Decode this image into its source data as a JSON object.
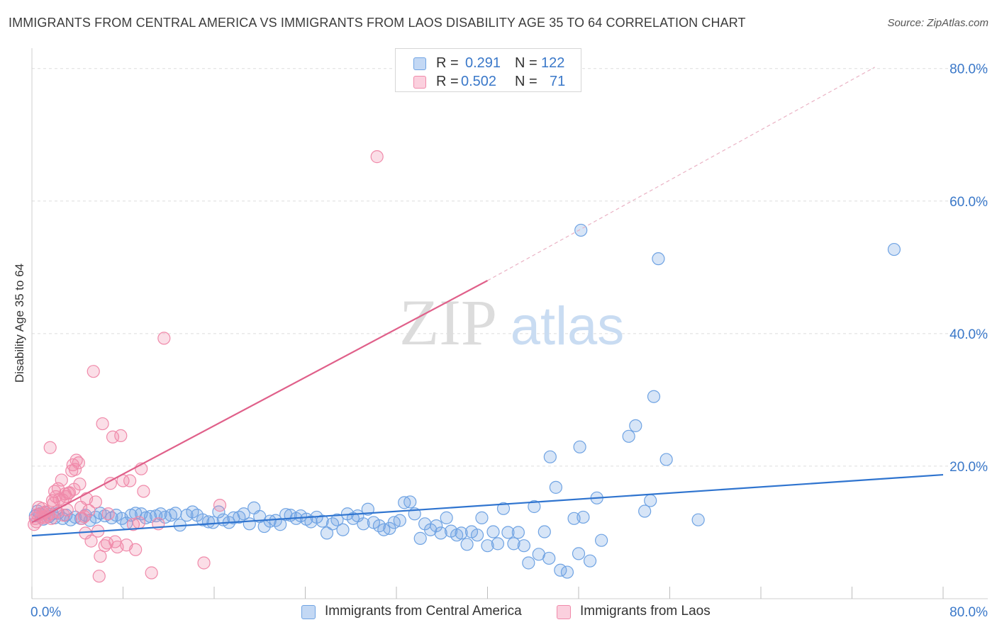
{
  "title": "IMMIGRANTS FROM CENTRAL AMERICA VS IMMIGRANTS FROM LAOS DISABILITY AGE 35 TO 64 CORRELATION CHART",
  "source": "Source: ZipAtlas.com",
  "watermark": {
    "zip": "ZIP",
    "atlas": "atlas"
  },
  "legend": {
    "r_label": "R =",
    "n_label": "N =",
    "rows": [
      {
        "r": "0.291",
        "n": "122",
        "color": "#6fa3e3"
      },
      {
        "r": "0.502",
        "n": "71",
        "color": "#f08aaa"
      }
    ]
  },
  "chart_data": {
    "type": "scatter",
    "title": "IMMIGRANTS FROM CENTRAL AMERICA VS IMMIGRANTS FROM LAOS DISABILITY AGE 35 TO 64 CORRELATION CHART",
    "xlabel": "",
    "ylabel": "Disability Age 35 to 64",
    "xlim": [
      0,
      80
    ],
    "ylim": [
      0,
      82
    ],
    "x_tick_labels": [
      "0.0%",
      "80.0%"
    ],
    "y_ticks": [
      20,
      40,
      60,
      80
    ],
    "y_tick_labels": [
      "20.0%",
      "40.0%",
      "60.0%",
      "80.0%"
    ],
    "grid": true,
    "legend_position": "bottom",
    "series": [
      {
        "name": "Immigrants from Central America",
        "color": "#6fa3e3",
        "trend": {
          "x": [
            0,
            80
          ],
          "y": [
            9.5,
            18.7
          ],
          "style": "solid"
        },
        "points": [
          [
            0.3,
            12.5
          ],
          [
            0.5,
            13.2
          ],
          [
            0.7,
            12.8
          ],
          [
            1.0,
            12.0
          ],
          [
            1.2,
            13.0
          ],
          [
            1.5,
            12.4
          ],
          [
            1.8,
            12.8
          ],
          [
            2.0,
            12.2
          ],
          [
            2.3,
            12.9
          ],
          [
            2.7,
            12.1
          ],
          [
            3.0,
            12.6
          ],
          [
            3.4,
            11.9
          ],
          [
            3.8,
            12.3
          ],
          [
            4.3,
            12.1
          ],
          [
            4.7,
            12.6
          ],
          [
            5.1,
            11.8
          ],
          [
            5.6,
            12.3
          ],
          [
            6.0,
            12.9
          ],
          [
            6.4,
            12.5
          ],
          [
            7.0,
            12.2
          ],
          [
            7.4,
            12.6
          ],
          [
            7.9,
            12.1
          ],
          [
            8.3,
            11.4
          ],
          [
            8.7,
            12.6
          ],
          [
            9.1,
            12.9
          ],
          [
            9.6,
            12.8
          ],
          [
            10.0,
            12.2
          ],
          [
            10.4,
            12.4
          ],
          [
            10.9,
            12.5
          ],
          [
            11.3,
            12.8
          ],
          [
            11.7,
            12.3
          ],
          [
            12.2,
            12.6
          ],
          [
            12.6,
            12.9
          ],
          [
            13.0,
            11.1
          ],
          [
            13.6,
            12.6
          ],
          [
            14.1,
            13.1
          ],
          [
            14.5,
            12.6
          ],
          [
            15.0,
            11.9
          ],
          [
            15.5,
            11.6
          ],
          [
            15.9,
            11.5
          ],
          [
            16.4,
            13.1
          ],
          [
            16.8,
            11.9
          ],
          [
            17.3,
            11.5
          ],
          [
            17.7,
            12.2
          ],
          [
            18.2,
            12.3
          ],
          [
            18.6,
            12.8
          ],
          [
            19.1,
            11.3
          ],
          [
            19.5,
            13.7
          ],
          [
            20.0,
            12.4
          ],
          [
            20.4,
            10.9
          ],
          [
            20.9,
            11.7
          ],
          [
            21.4,
            11.8
          ],
          [
            21.8,
            11.2
          ],
          [
            22.3,
            12.7
          ],
          [
            22.7,
            12.6
          ],
          [
            23.2,
            12.1
          ],
          [
            23.6,
            12.5
          ],
          [
            24.1,
            12.0
          ],
          [
            24.5,
            11.6
          ],
          [
            25.0,
            12.3
          ],
          [
            25.5,
            11.7
          ],
          [
            25.9,
            9.9
          ],
          [
            26.4,
            11.3
          ],
          [
            26.8,
            11.9
          ],
          [
            27.3,
            10.4
          ],
          [
            27.7,
            12.8
          ],
          [
            28.2,
            12.1
          ],
          [
            28.6,
            12.5
          ],
          [
            29.1,
            11.3
          ],
          [
            29.5,
            13.5
          ],
          [
            30.0,
            11.5
          ],
          [
            30.5,
            11.0
          ],
          [
            30.9,
            10.4
          ],
          [
            31.4,
            10.6
          ],
          [
            31.8,
            11.5
          ],
          [
            32.3,
            11.8
          ],
          [
            32.7,
            14.5
          ],
          [
            33.2,
            14.6
          ],
          [
            33.6,
            12.8
          ],
          [
            34.1,
            9.1
          ],
          [
            34.5,
            11.3
          ],
          [
            35.0,
            10.4
          ],
          [
            35.5,
            11.0
          ],
          [
            35.9,
            9.9
          ],
          [
            36.4,
            12.2
          ],
          [
            36.8,
            10.2
          ],
          [
            37.3,
            9.6
          ],
          [
            37.7,
            9.9
          ],
          [
            38.2,
            8.2
          ],
          [
            38.6,
            10.1
          ],
          [
            39.1,
            9.6
          ],
          [
            39.5,
            12.2
          ],
          [
            40.0,
            8.0
          ],
          [
            40.5,
            10.1
          ],
          [
            40.9,
            8.3
          ],
          [
            41.4,
            13.6
          ],
          [
            41.8,
            10.0
          ],
          [
            42.3,
            8.3
          ],
          [
            42.7,
            10.0
          ],
          [
            43.2,
            8.0
          ],
          [
            43.6,
            5.4
          ],
          [
            44.1,
            13.9
          ],
          [
            44.5,
            6.7
          ],
          [
            45.0,
            10.1
          ],
          [
            45.4,
            6.1
          ],
          [
            46.4,
            4.3
          ],
          [
            47.0,
            4.0
          ],
          [
            48.0,
            6.8
          ],
          [
            49.0,
            5.7
          ],
          [
            50.0,
            8.8
          ],
          [
            45.5,
            21.4
          ],
          [
            46.0,
            16.8
          ],
          [
            48.1,
            22.9
          ],
          [
            52.4,
            24.5
          ],
          [
            53.0,
            26.1
          ],
          [
            54.6,
            30.5
          ],
          [
            54.3,
            14.8
          ],
          [
            55.7,
            21.0
          ],
          [
            47.6,
            12.1
          ],
          [
            48.4,
            12.3
          ],
          [
            49.6,
            15.2
          ],
          [
            53.8,
            13.2
          ],
          [
            58.5,
            11.9
          ],
          [
            55.0,
            51.3
          ],
          [
            48.2,
            55.6
          ],
          [
            75.7,
            52.7
          ]
        ]
      },
      {
        "name": "Immigrants from Laos",
        "color": "#f08aaa",
        "trend": {
          "x": [
            0,
            40
          ],
          "y": [
            11.5,
            48.0
          ],
          "style": "solid",
          "extended": {
            "x": [
              40,
              74
            ],
            "y": [
              48.0,
              80.2
            ],
            "style": "dashed"
          }
        },
        "points": [
          [
            0.2,
            11.2
          ],
          [
            0.3,
            12.1
          ],
          [
            0.5,
            12.7
          ],
          [
            0.6,
            13.8
          ],
          [
            0.8,
            12.3
          ],
          [
            1.0,
            12.9
          ],
          [
            1.2,
            13.1
          ],
          [
            1.3,
            12.4
          ],
          [
            1.5,
            12.7
          ],
          [
            1.7,
            12.1
          ],
          [
            1.8,
            14.8
          ],
          [
            2.0,
            16.2
          ],
          [
            2.1,
            15.4
          ],
          [
            2.3,
            16.6
          ],
          [
            2.4,
            15.0
          ],
          [
            2.6,
            17.9
          ],
          [
            2.7,
            14.9
          ],
          [
            2.9,
            15.8
          ],
          [
            3.0,
            15.4
          ],
          [
            3.2,
            15.9
          ],
          [
            3.3,
            16.0
          ],
          [
            3.5,
            19.3
          ],
          [
            3.6,
            20.2
          ],
          [
            3.8,
            19.5
          ],
          [
            3.9,
            20.9
          ],
          [
            4.1,
            20.5
          ],
          [
            4.2,
            17.3
          ],
          [
            4.4,
            12.1
          ],
          [
            4.6,
            12.4
          ],
          [
            4.8,
            15.1
          ],
          [
            5.0,
            13.3
          ],
          [
            5.2,
            8.7
          ],
          [
            5.4,
            34.3
          ],
          [
            5.6,
            14.6
          ],
          [
            5.8,
            10.2
          ],
          [
            6.0,
            6.4
          ],
          [
            6.2,
            26.4
          ],
          [
            6.4,
            8.0
          ],
          [
            6.6,
            8.4
          ],
          [
            6.9,
            17.4
          ],
          [
            7.1,
            24.4
          ],
          [
            7.3,
            8.6
          ],
          [
            7.5,
            7.8
          ],
          [
            7.8,
            24.6
          ],
          [
            8.0,
            17.8
          ],
          [
            8.3,
            8.1
          ],
          [
            8.6,
            17.8
          ],
          [
            8.9,
            11.2
          ],
          [
            9.1,
            7.4
          ],
          [
            9.4,
            11.5
          ],
          [
            9.6,
            19.6
          ],
          [
            9.8,
            16.2
          ],
          [
            10.5,
            3.9
          ],
          [
            11.1,
            11.3
          ],
          [
            11.6,
            39.3
          ],
          [
            15.1,
            5.4
          ],
          [
            16.5,
            14.1
          ],
          [
            30.3,
            66.7
          ],
          [
            1.6,
            22.8
          ],
          [
            1.1,
            12.2
          ],
          [
            2.2,
            13.1
          ],
          [
            3.1,
            13.4
          ],
          [
            4.3,
            13.8
          ],
          [
            0.9,
            13.6
          ],
          [
            1.9,
            14.4
          ],
          [
            2.8,
            12.6
          ],
          [
            3.7,
            16.5
          ],
          [
            4.7,
            9.9
          ],
          [
            5.9,
            3.4
          ],
          [
            6.7,
            12.8
          ],
          [
            0.4,
            11.6
          ]
        ]
      }
    ]
  },
  "bottom_legend": {
    "items": [
      {
        "label": "Immigrants from Central America",
        "color": "#6fa3e3"
      },
      {
        "label": "Immigrants from Laos",
        "color": "#f08aaa"
      }
    ]
  }
}
